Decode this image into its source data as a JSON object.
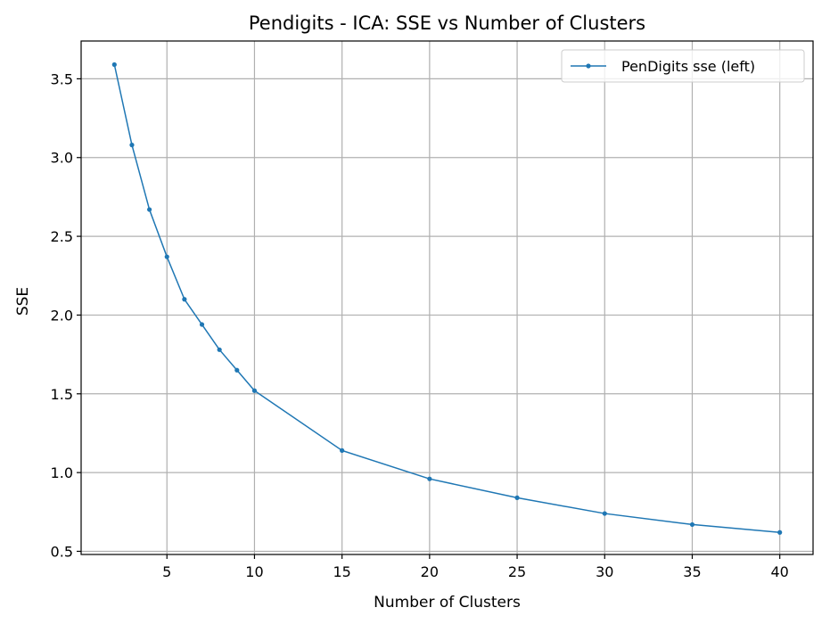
{
  "chart_data": {
    "type": "line",
    "title": "Pendigits - ICA: SSE vs Number of Clusters",
    "xlabel": "Number of Clusters",
    "ylabel": "SSE",
    "xlim": [
      0.1,
      41.9
    ],
    "ylim": [
      0.48,
      3.74
    ],
    "xticks": [
      5,
      10,
      15,
      20,
      25,
      30,
      35,
      40
    ],
    "yticks": [
      0.5,
      1.0,
      1.5,
      2.0,
      2.5,
      3.0,
      3.5
    ],
    "grid": true,
    "legend_position": "top-right",
    "series": [
      {
        "name": "PenDigits sse (left)",
        "color": "#1f77b4",
        "marker": "circle",
        "x": [
          2,
          3,
          4,
          5,
          6,
          7,
          8,
          9,
          10,
          15,
          20,
          25,
          30,
          35,
          40
        ],
        "y": [
          3.59,
          3.08,
          2.67,
          2.37,
          2.1,
          1.94,
          1.78,
          1.65,
          1.52,
          1.14,
          0.96,
          0.84,
          0.74,
          0.67,
          0.62
        ]
      }
    ]
  }
}
